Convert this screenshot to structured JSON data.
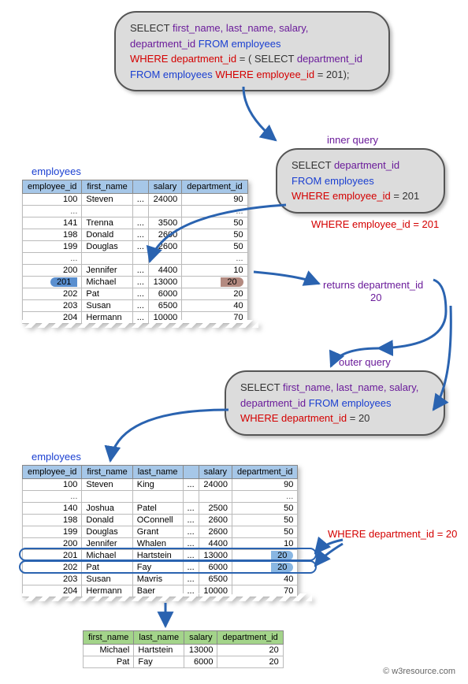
{
  "colors": {
    "box_bg": "#dcdcdc",
    "box_border": "#555555",
    "arrow": "#2a63b0",
    "th_employees": "#a6c7e8",
    "th_result": "#a3d48a",
    "highlight_id": "#5a8fcf",
    "highlight_dep_brown": "#b38a80",
    "highlight_dep_blue": "#89b6e2",
    "purple": "#6a1b9a",
    "blue": "#1a3fd1",
    "red": "#d40000"
  },
  "main_query": {
    "line1a": "SELECT ",
    "line1b": "first_name, last_name, salary,",
    "line2a": "department_id ",
    "line2b": "FROM employees",
    "line3a": "WHERE department_id ",
    "line3b": "= ( ",
    "line3c": "SELECT ",
    "line3d": "department_id",
    "line4a": "FROM employees ",
    "line4b": "WHERE employee_id ",
    "line4c": "= 201);"
  },
  "inner_label": "inner query",
  "inner_query": {
    "l1a": "SELECT ",
    "l1b": "department_id",
    "l2": "FROM employees",
    "l3a": "WHERE employee_id ",
    "l3b": "= 201"
  },
  "filter1": "WHERE employee_id = 201",
  "returns_label": "returns department_id",
  "returns_value": "20",
  "outer_label": "outer query",
  "outer_query": {
    "l1a": "SELECT ",
    "l1b": "first_name, last_name, salary,",
    "l2a": "department_id ",
    "l2b": "FROM employees",
    "l3a": "WHERE department_id ",
    "l3b": "= ",
    "l3c": "20"
  },
  "filter2": "WHERE department_id = 20",
  "employees_label": "employees",
  "t1": {
    "cols": [
      "employee_id",
      "first_name",
      "",
      "salary",
      "department_id"
    ],
    "rows": [
      [
        "100",
        "Steven",
        "...",
        "24000",
        "90"
      ],
      [
        "...",
        "",
        "",
        "",
        "..."
      ],
      [
        "141",
        "Trenna",
        "...",
        "3500",
        "50"
      ],
      [
        "198",
        "Donald",
        "...",
        "2600",
        "50"
      ],
      [
        "199",
        "Douglas",
        "...",
        "2600",
        "50"
      ],
      [
        "...",
        "",
        "",
        "",
        "..."
      ],
      [
        "200",
        "Jennifer",
        "...",
        "4400",
        "10"
      ],
      [
        "201",
        "Michael",
        "...",
        "13000",
        "20"
      ],
      [
        "202",
        "Pat",
        "...",
        "6000",
        "20"
      ],
      [
        "203",
        "Susan",
        "...",
        "6500",
        "40"
      ],
      [
        "204",
        "Hermann",
        "...",
        "10000",
        "70"
      ]
    ],
    "highlight_row_index": 7
  },
  "t2": {
    "cols": [
      "employee_id",
      "first_name",
      "last_name",
      "",
      "salary",
      "department_id"
    ],
    "rows": [
      [
        "100",
        "Steven",
        "King",
        "...",
        "24000",
        "90"
      ],
      [
        "...",
        "",
        "",
        "",
        "",
        "..."
      ],
      [
        "140",
        "Joshua",
        "Patel",
        "...",
        "2500",
        "50"
      ],
      [
        "198",
        "Donald",
        "OConnell",
        "...",
        "2600",
        "50"
      ],
      [
        "199",
        "Douglas",
        "Grant",
        "...",
        "2600",
        "50"
      ],
      [
        "200",
        "Jennifer",
        "Whalen",
        "...",
        "4400",
        "10"
      ],
      [
        "201",
        "Michael",
        "Hartstein",
        "...",
        "13000",
        "20"
      ],
      [
        "202",
        "Pat",
        "Fay",
        "...",
        "6000",
        "20"
      ],
      [
        "203",
        "Susan",
        "Mavris",
        "...",
        "6500",
        "40"
      ],
      [
        "204",
        "Hermann",
        "Baer",
        "...",
        "10000",
        "70"
      ]
    ],
    "highlight_rows": [
      6,
      7
    ]
  },
  "result": {
    "cols": [
      "first_name",
      "last_name",
      "salary",
      "department_id"
    ],
    "rows": [
      [
        "Michael",
        "Hartstein",
        "13000",
        "20"
      ],
      [
        "Pat",
        "Fay",
        "6000",
        "20"
      ]
    ]
  },
  "footer": "© w3resource.com"
}
